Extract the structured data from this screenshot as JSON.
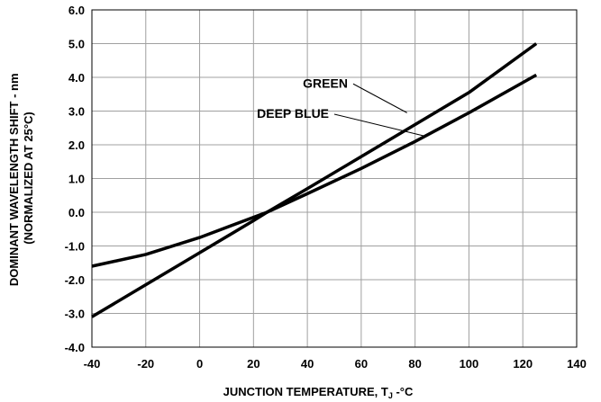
{
  "chart_data": {
    "type": "line",
    "title": "",
    "xlabel": "JUNCTION TEMPERATURE, T",
    "xlabel_subscript": "J",
    "xlabel_suffix": " -°C",
    "ylabel_line1": "DOMINANT WAVELENGTH SHIFT - nm",
    "ylabel_line2": "(NORMALIZED AT 25°C)",
    "xlim": [
      -40,
      140
    ],
    "ylim": [
      -4.0,
      6.0
    ],
    "x_ticks": [
      -40,
      -20,
      0,
      20,
      40,
      60,
      80,
      100,
      120,
      140
    ],
    "x_tick_labels": [
      "-40",
      "-20",
      "0",
      "20",
      "40",
      "60",
      "80",
      "100",
      "120",
      "140"
    ],
    "y_ticks": [
      6.0,
      5.0,
      4.0,
      3.0,
      2.0,
      1.0,
      0.0,
      -1.0,
      -2.0,
      -3.0,
      -4.0
    ],
    "y_tick_labels": [
      "6.0",
      "5.0",
      "4.0",
      "3.0",
      "2.0",
      "1.0",
      "0.0",
      "-1.0",
      "-2.0",
      "-3.0",
      "-4.0"
    ],
    "grid": true,
    "series": [
      {
        "name": "GREEN",
        "x": [
          -40,
          -20,
          0,
          20,
          25,
          40,
          60,
          80,
          100,
          125
        ],
        "y": [
          -3.1,
          -2.15,
          -1.2,
          -0.25,
          0.0,
          0.7,
          1.65,
          2.6,
          3.55,
          5.0
        ]
      },
      {
        "name": "DEEP BLUE",
        "x": [
          -40,
          -20,
          0,
          20,
          25,
          40,
          60,
          80,
          100,
          125
        ],
        "y": [
          -1.6,
          -1.25,
          -0.75,
          -0.15,
          0.0,
          0.55,
          1.3,
          2.1,
          2.95,
          4.07
        ]
      }
    ],
    "annotations": [
      {
        "text": "GREEN",
        "series": "GREEN",
        "label_x": 55,
        "label_y": 3.7,
        "target_x": 77,
        "target_y": 2.95
      },
      {
        "text": "DEEP BLUE",
        "series": "DEEP BLUE",
        "label_x": 48,
        "label_y": 2.8,
        "target_x": 84,
        "target_y": 2.25
      }
    ],
    "style": {
      "line_color": "#000000",
      "grid_color": "#a0a0a0",
      "background": "#ffffff"
    }
  }
}
